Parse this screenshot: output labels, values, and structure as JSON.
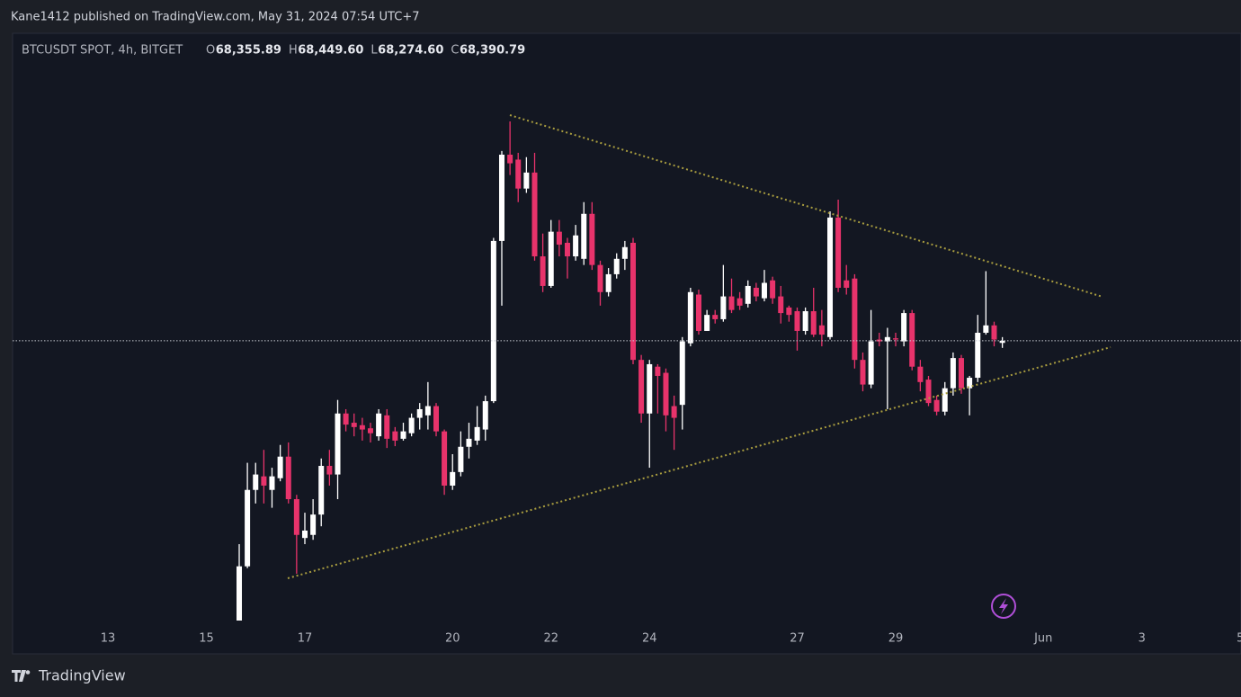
{
  "header": {
    "title": "Kane1412 published on TradingView.com, May 31, 2024 07:54 UTC+7"
  },
  "footer": {
    "brand": "TradingView"
  },
  "chart_data": {
    "type": "candlestick",
    "title": "BTCUSDT SPOT, 4h, BITGET",
    "legend": [
      {
        "key": "O",
        "value": "68,355.89"
      },
      {
        "key": "H",
        "value": "68,449.60"
      },
      {
        "key": "L",
        "value": "68,274.60"
      },
      {
        "key": "C",
        "value": "68,390.79"
      }
    ],
    "up_color": "#ffffff",
    "down_color": "#e8336b",
    "x": [
      15.667,
      15.833,
      16,
      16.167,
      16.333,
      16.5,
      16.667,
      16.833,
      17,
      17.167,
      17.333,
      17.5,
      17.667,
      17.833,
      18,
      18.167,
      18.333,
      18.5,
      18.667,
      18.833,
      19,
      19.167,
      19.333,
      19.5,
      19.667,
      19.833,
      20,
      20.167,
      20.333,
      20.5,
      20.667,
      20.833,
      21,
      21.167,
      21.333,
      21.5,
      21.667,
      21.833,
      22,
      22.167,
      22.333,
      22.5,
      22.667,
      22.833,
      23,
      23.167,
      23.333,
      23.5,
      23.667,
      23.833,
      24,
      24.167,
      24.333,
      24.5,
      24.667,
      24.833,
      25,
      25.167,
      25.333,
      25.5,
      25.667,
      25.833,
      26,
      26.167,
      26.333,
      26.5,
      26.667,
      26.833,
      27,
      27.167,
      27.333,
      27.5,
      27.667,
      27.833,
      28,
      28.167,
      28.333,
      28.5,
      28.667,
      28.833,
      29,
      29.167,
      29.333,
      29.5,
      29.667,
      29.833,
      30,
      30.167,
      30.333,
      30.5,
      30.667,
      30.833,
      31,
      31.167
    ],
    "candles": [
      [
        63850,
        65090,
        63850,
        64730
      ],
      [
        64730,
        66410,
        64700,
        65970
      ],
      [
        65970,
        66410,
        65750,
        66220
      ],
      [
        66190,
        66620,
        65750,
        66040
      ],
      [
        65970,
        66330,
        65680,
        66190
      ],
      [
        66160,
        66700,
        66110,
        66510
      ],
      [
        66510,
        66740,
        65750,
        65820
      ],
      [
        65820,
        65890,
        64610,
        65240
      ],
      [
        65190,
        65600,
        65090,
        65310
      ],
      [
        65240,
        65820,
        65160,
        65570
      ],
      [
        65570,
        66480,
        65380,
        66360
      ],
      [
        66360,
        66620,
        66040,
        66220
      ],
      [
        66220,
        67430,
        65820,
        67210
      ],
      [
        67210,
        67280,
        66920,
        67030
      ],
      [
        67060,
        67210,
        66840,
        66990
      ],
      [
        67020,
        67140,
        66770,
        66950
      ],
      [
        66970,
        67060,
        66740,
        66890
      ],
      [
        66840,
        67280,
        66770,
        67210
      ],
      [
        67180,
        67280,
        66650,
        66800
      ],
      [
        66920,
        66990,
        66680,
        66770
      ],
      [
        66800,
        67060,
        66770,
        66920
      ],
      [
        66890,
        67210,
        66840,
        67140
      ],
      [
        67140,
        67380,
        66950,
        67280
      ],
      [
        67180,
        67720,
        66950,
        67330
      ],
      [
        67330,
        67380,
        66840,
        66920
      ],
      [
        66920,
        66950,
        65890,
        66040
      ],
      [
        66040,
        66550,
        65970,
        66260
      ],
      [
        66260,
        66920,
        66190,
        66670
      ],
      [
        66670,
        67060,
        66480,
        66800
      ],
      [
        66770,
        67330,
        66700,
        66990
      ],
      [
        66950,
        67500,
        66770,
        67410
      ],
      [
        67410,
        70060,
        67380,
        70010
      ],
      [
        70010,
        71470,
        68960,
        71410
      ],
      [
        71410,
        71950,
        71080,
        71270
      ],
      [
        71330,
        71440,
        70640,
        70860
      ],
      [
        70860,
        71370,
        70790,
        71120
      ],
      [
        71120,
        71440,
        69690,
        69760
      ],
      [
        69760,
        70130,
        69180,
        69280
      ],
      [
        69280,
        70350,
        69250,
        70160
      ],
      [
        70160,
        70350,
        69760,
        69950
      ],
      [
        69980,
        70060,
        69400,
        69760
      ],
      [
        69760,
        70270,
        69690,
        70100
      ],
      [
        69720,
        70640,
        69620,
        70450
      ],
      [
        70450,
        70640,
        69540,
        69620
      ],
      [
        69620,
        69690,
        68960,
        69180
      ],
      [
        69180,
        69570,
        69110,
        69470
      ],
      [
        69470,
        69810,
        69400,
        69720
      ],
      [
        69720,
        70010,
        69540,
        69910
      ],
      [
        69980,
        70060,
        68010,
        68080
      ],
      [
        68080,
        68160,
        67060,
        67210
      ],
      [
        67210,
        68080,
        66330,
        68010
      ],
      [
        67970,
        68010,
        67210,
        67820
      ],
      [
        67870,
        67940,
        66920,
        67180
      ],
      [
        67330,
        67500,
        66620,
        67140
      ],
      [
        67350,
        68450,
        66950,
        68380
      ],
      [
        68350,
        69250,
        68300,
        69180
      ],
      [
        69140,
        69220,
        68490,
        68550
      ],
      [
        68550,
        68890,
        68550,
        68810
      ],
      [
        68810,
        68890,
        68670,
        68740
      ],
      [
        68740,
        69620,
        68700,
        69110
      ],
      [
        69110,
        69400,
        68840,
        68890
      ],
      [
        69080,
        69180,
        68890,
        68960
      ],
      [
        68990,
        69370,
        68930,
        69280
      ],
      [
        69250,
        69330,
        69030,
        69110
      ],
      [
        69080,
        69540,
        69030,
        69330
      ],
      [
        69370,
        69430,
        68990,
        69080
      ],
      [
        69110,
        69280,
        68670,
        68840
      ],
      [
        68930,
        68960,
        68700,
        68810
      ],
      [
        68870,
        68930,
        68230,
        68550
      ],
      [
        68550,
        68930,
        68490,
        68870
      ],
      [
        68870,
        69250,
        68450,
        68490
      ],
      [
        68640,
        68890,
        68300,
        68490
      ],
      [
        68450,
        70490,
        68410,
        70390
      ],
      [
        70390,
        70680,
        69180,
        69250
      ],
      [
        69370,
        69620,
        69140,
        69250
      ],
      [
        69400,
        69470,
        67940,
        68080
      ],
      [
        68080,
        68200,
        67570,
        67680
      ],
      [
        67680,
        68890,
        67620,
        68380
      ],
      [
        68410,
        68520,
        68300,
        68380
      ],
      [
        68380,
        68600,
        67280,
        68450
      ],
      [
        68430,
        68520,
        68300,
        68410
      ],
      [
        68380,
        68890,
        68300,
        68840
      ],
      [
        68840,
        68890,
        67910,
        67970
      ],
      [
        67970,
        68080,
        67570,
        67720
      ],
      [
        67760,
        67820,
        67330,
        67380
      ],
      [
        67430,
        67500,
        67180,
        67240
      ],
      [
        67240,
        67720,
        67180,
        67620
      ],
      [
        67620,
        68200,
        67500,
        68110
      ],
      [
        68110,
        68160,
        67530,
        67620
      ],
      [
        67620,
        67820,
        67180,
        67790
      ],
      [
        67790,
        68810,
        67720,
        68520
      ],
      [
        68520,
        69520,
        68490,
        68640
      ],
      [
        68640,
        68700,
        68300,
        68410
      ],
      [
        68355.89,
        68449.6,
        68274.6,
        68390.79
      ]
    ],
    "xlim": [
      11.064,
      36.014
    ],
    "xticks": [
      13,
      15,
      17,
      20,
      22,
      24,
      27,
      29,
      {
        "value": 32,
        "label": "Jun"
      },
      {
        "value": 34,
        "label": "3"
      },
      {
        "value": 36,
        "label": "5"
      }
    ],
    "ylim": [
      63310,
      73380
    ],
    "price_line": true
  }
}
